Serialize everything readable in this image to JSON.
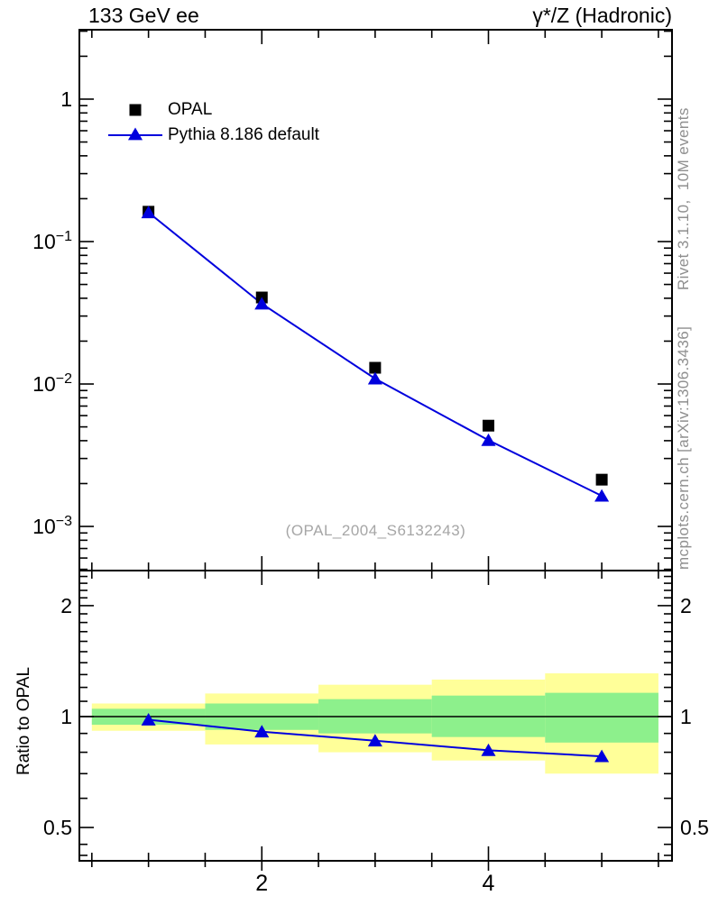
{
  "header": {
    "left_title": "133 GeV ee",
    "right_title": "γ*/Z (Hadronic)"
  },
  "side_notes": {
    "rivet": "Rivet 3.1.10,  10M events",
    "mcplots": "mcplots.cern.ch [arXiv:1306.3436]"
  },
  "watermark": "(OPAL_2004_S6132243)",
  "colors": {
    "series_blue": "#0000dd",
    "data_black": "#000000",
    "band_green": "#8df08c",
    "band_yellow": "#ffff99",
    "note_gray": "#8f8f8f",
    "watermark_gray": "#a6a6a6",
    "axis_black": "#000000"
  },
  "chart_data": [
    {
      "type": "line",
      "panel": "main",
      "title": "",
      "xlabel": "",
      "ylabel": "",
      "x": [
        1,
        2,
        3,
        4,
        5
      ],
      "series": [
        {
          "name": "OPAL",
          "marker": "square",
          "color": "#000000",
          "line": false,
          "values": [
            0.162,
            0.0405,
            0.013,
            0.0051,
            0.00213
          ]
        },
        {
          "name": "Pythia 8.186 default",
          "marker": "triangle",
          "color": "#0000dd",
          "line": true,
          "values": [
            0.16,
            0.0366,
            0.0109,
            0.00403,
            0.00164
          ]
        }
      ],
      "xlim": [
        0.39,
        5.62
      ],
      "ylim": [
        0.00049,
        3.07
      ],
      "yscale": "log",
      "grid": false,
      "legend_position": "top-left",
      "xticks_major": [
        {
          "v": 2,
          "label": "2"
        },
        {
          "v": 4,
          "label": "4"
        }
      ],
      "xticks_minor": [
        0.5,
        1,
        1.5,
        2.5,
        3,
        3.5,
        4.5,
        5,
        5.5
      ],
      "yticks_major": [
        {
          "v": 1,
          "base": "1",
          "exp": ""
        },
        {
          "v": 0.1,
          "base": "10",
          "exp": "−1"
        },
        {
          "v": 0.01,
          "base": "10",
          "exp": "−2"
        },
        {
          "v": 0.001,
          "base": "10",
          "exp": "−3"
        }
      ]
    },
    {
      "type": "ratio-line",
      "panel": "ratio",
      "ylabel": "Ratio to OPAL",
      "x": [
        1,
        2,
        3,
        4,
        5
      ],
      "values": [
        0.98,
        0.91,
        0.86,
        0.81,
        0.78
      ],
      "series_name": "Pythia 8.186 default",
      "reference_line": 1,
      "bands": [
        {
          "xlo": 0.5,
          "xhi": 1.5,
          "green": [
            0.95,
            1.05
          ],
          "yellow": [
            0.915,
            1.085
          ]
        },
        {
          "xlo": 1.5,
          "xhi": 2.5,
          "green": [
            0.92,
            1.085
          ],
          "yellow": [
            0.84,
            1.155
          ]
        },
        {
          "xlo": 2.5,
          "xhi": 3.5,
          "green": [
            0.9,
            1.115
          ],
          "yellow": [
            0.8,
            1.22
          ]
        },
        {
          "xlo": 3.5,
          "xhi": 4.5,
          "green": [
            0.88,
            1.14
          ],
          "yellow": [
            0.76,
            1.26
          ]
        },
        {
          "xlo": 4.5,
          "xhi": 5.5,
          "green": [
            0.85,
            1.16
          ],
          "yellow": [
            0.7,
            1.31
          ]
        }
      ],
      "xlim": [
        0.39,
        5.62
      ],
      "ylim": [
        0.406,
        2.49
      ],
      "yscale": "log",
      "xticks_major": [
        {
          "v": 2,
          "label": "2"
        },
        {
          "v": 4,
          "label": "4"
        }
      ],
      "xticks_minor": [
        0.5,
        1,
        1.5,
        2.5,
        3,
        3.5,
        4.5,
        5,
        5.5
      ],
      "yticks_major": [
        {
          "v": 2,
          "label": "2"
        },
        {
          "v": 1,
          "label": "1"
        },
        {
          "v": 0.5,
          "label": "0.5"
        }
      ],
      "yticks_minor": [
        2.4,
        2.3,
        2.2,
        2.1,
        1.9,
        1.8,
        1.7,
        1.6,
        1.5,
        1.4,
        1.3,
        1.2,
        1.1,
        0.9,
        0.8,
        0.7,
        0.6,
        0.45,
        0.42
      ]
    }
  ]
}
